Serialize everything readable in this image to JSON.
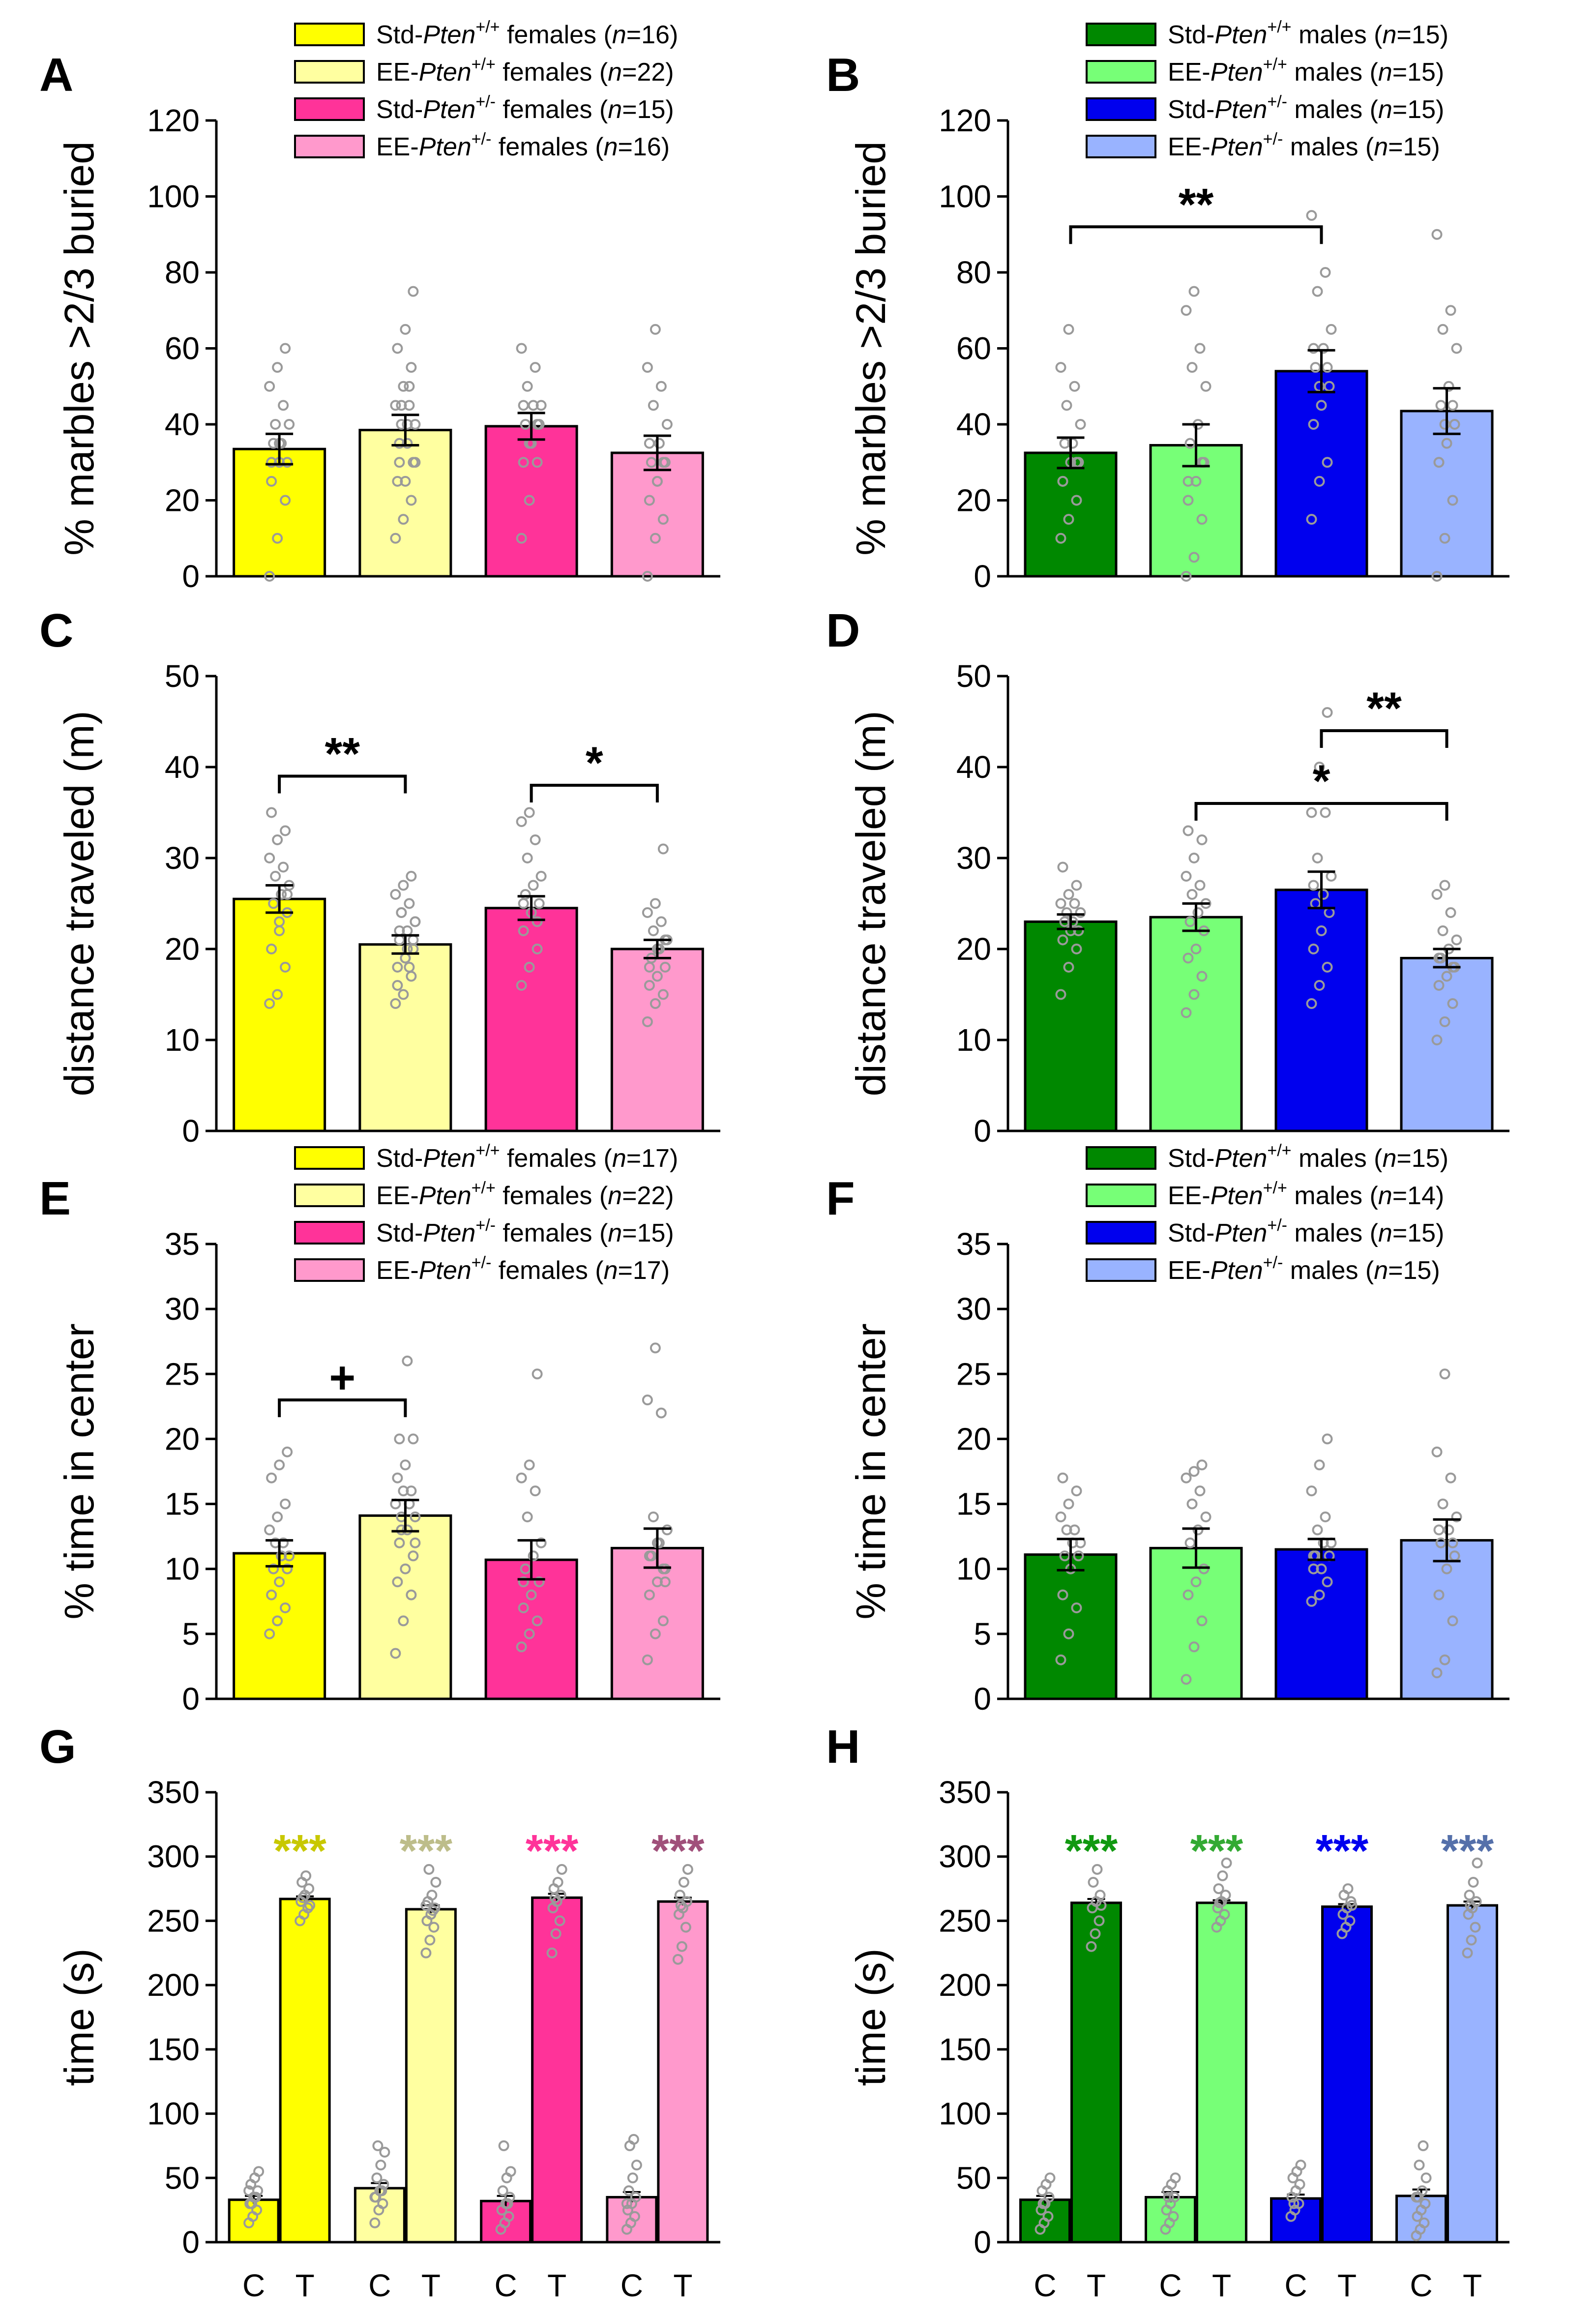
{
  "colors": {
    "female_std_wt": "#FFFF00",
    "female_ee_wt": "#FFFFA0",
    "female_std_het": "#FF3399",
    "female_ee_het": "#FF99CC",
    "male_std_wt": "#008800",
    "male_ee_wt": "#77FF77",
    "male_std_het": "#0000EE",
    "male_ee_het": "#99B3FF",
    "star_female_std_wt": "#C8C800",
    "star_female_ee_wt": "#BDBD8A",
    "star_female_std_het": "#FF3399",
    "star_female_ee_het": "#A0507A",
    "star_male_std_wt": "#119911",
    "star_male_ee_wt": "#33AA33",
    "star_male_std_het": "#0000EE",
    "star_male_ee_het": "#5570AA",
    "dot": "#9A9A9A"
  },
  "chart_data": [
    {
      "panel": "A",
      "type": "bar",
      "sex": "female",
      "ylabel": "% marbles >2/3 buried",
      "ylim": [
        0,
        120
      ],
      "yticks": [
        "0",
        "20",
        "40",
        "60",
        "80",
        "100",
        "120"
      ],
      "legend": [
        {
          "prefix": "Std-",
          "gene": "Pten",
          "sup": "+/+",
          "suffix": " females (",
          "n": "n",
          "count": "=16)"
        },
        {
          "prefix": "EE-",
          "gene": "Pten",
          "sup": "+/+",
          "suffix": " females (",
          "n": "n",
          "count": "=22)"
        },
        {
          "prefix": "Std-",
          "gene": "Pten",
          "sup": "+/-",
          "suffix": " females (",
          "n": "n",
          "count": "=15)"
        },
        {
          "prefix": "EE-",
          "gene": "Pten",
          "sup": "+/-",
          "suffix": " females (",
          "n": "n",
          "count": "=16)"
        }
      ],
      "values": [
        33.5,
        38.5,
        39.5,
        32.5
      ],
      "sem": [
        4,
        4,
        3.5,
        4.5
      ],
      "points": [
        [
          0,
          10,
          20,
          25,
          30,
          30,
          35,
          35,
          40,
          40,
          45,
          50,
          55,
          60,
          30,
          35
        ],
        [
          10,
          15,
          20,
          25,
          25,
          30,
          30,
          35,
          40,
          40,
          45,
          45,
          50,
          55,
          60,
          65,
          75,
          35,
          40,
          30,
          45,
          50
        ],
        [
          10,
          20,
          30,
          30,
          35,
          40,
          40,
          45,
          45,
          50,
          55,
          60,
          35,
          40,
          45
        ],
        [
          0,
          10,
          15,
          20,
          25,
          30,
          30,
          35,
          40,
          45,
          50,
          55,
          65,
          30,
          35,
          25
        ]
      ],
      "significance": []
    },
    {
      "panel": "B",
      "type": "bar",
      "sex": "male",
      "ylabel": "% marbles >2/3 buried",
      "ylim": [
        0,
        120
      ],
      "yticks": [
        "0",
        "20",
        "40",
        "60",
        "80",
        "100",
        "120"
      ],
      "legend": [
        {
          "prefix": "Std-",
          "gene": "Pten",
          "sup": "+/+",
          "suffix": " males (",
          "n": "n",
          "count": "=15)"
        },
        {
          "prefix": "EE-",
          "gene": "Pten",
          "sup": "+/+",
          "suffix": " males (",
          "n": "n",
          "count": "=15)"
        },
        {
          "prefix": "Std-",
          "gene": "Pten",
          "sup": "+/-",
          "suffix": " males (",
          "n": "n",
          "count": "=15)"
        },
        {
          "prefix": "EE-",
          "gene": "Pten",
          "sup": "+/-",
          "suffix": " males (",
          "n": "n",
          "count": "=15)"
        }
      ],
      "values": [
        32.5,
        34.5,
        54,
        43.5
      ],
      "sem": [
        4,
        5.5,
        5.5,
        6
      ],
      "points": [
        [
          10,
          15,
          20,
          25,
          30,
          30,
          35,
          35,
          40,
          45,
          50,
          55,
          65,
          30,
          25
        ],
        [
          0,
          5,
          15,
          20,
          25,
          30,
          35,
          40,
          50,
          55,
          60,
          70,
          75,
          30,
          25
        ],
        [
          15,
          25,
          30,
          40,
          45,
          50,
          55,
          60,
          65,
          75,
          80,
          95,
          50,
          55,
          60
        ],
        [
          0,
          10,
          20,
          30,
          35,
          40,
          45,
          50,
          60,
          65,
          70,
          90,
          40,
          45,
          30
        ]
      ],
      "significance": [
        {
          "from": 0,
          "to": 2,
          "label": "**",
          "y": 92
        }
      ]
    },
    {
      "panel": "C",
      "type": "bar",
      "sex": "female",
      "ylabel": "distance traveled (m)",
      "ylim": [
        0,
        50
      ],
      "yticks": [
        "0",
        "10",
        "20",
        "30",
        "40",
        "50"
      ],
      "legend": [],
      "values": [
        25.5,
        20.5,
        24.5,
        20
      ],
      "sem": [
        1.5,
        1,
        1.3,
        1
      ],
      "points": [
        [
          14,
          15,
          18,
          20,
          22,
          24,
          25,
          26,
          27,
          28,
          29,
          30,
          32,
          33,
          35,
          23,
          26
        ],
        [
          14,
          15,
          17,
          18,
          19,
          20,
          21,
          22,
          23,
          24,
          25,
          26,
          27,
          28,
          16,
          19,
          21,
          22,
          20,
          23,
          24,
          18
        ],
        [
          16,
          18,
          20,
          22,
          24,
          25,
          26,
          27,
          28,
          30,
          32,
          34,
          35,
          23,
          25
        ],
        [
          12,
          14,
          15,
          16,
          17,
          18,
          19,
          20,
          21,
          22,
          23,
          24,
          25,
          31,
          18,
          20,
          21
        ]
      ],
      "significance": [
        {
          "from": 0,
          "to": 1,
          "label": "**",
          "y": 39
        },
        {
          "from": 2,
          "to": 3,
          "label": "*",
          "y": 38
        }
      ]
    },
    {
      "panel": "D",
      "type": "bar",
      "sex": "male",
      "ylabel": "distance traveled (m)",
      "ylim": [
        0,
        50
      ],
      "yticks": [
        "0",
        "10",
        "20",
        "30",
        "40",
        "50"
      ],
      "legend": [],
      "values": [
        23,
        23.5,
        26.5,
        19
      ],
      "sem": [
        0.8,
        1.5,
        2,
        1
      ],
      "points": [
        [
          15,
          18,
          20,
          21,
          22,
          22,
          23,
          23,
          24,
          24,
          25,
          25,
          26,
          27,
          29
        ],
        [
          13,
          15,
          17,
          19,
          20,
          22,
          23,
          24,
          25,
          26,
          27,
          28,
          30,
          32,
          33
        ],
        [
          14,
          16,
          18,
          20,
          22,
          24,
          25,
          26,
          28,
          30,
          35,
          35,
          40,
          46,
          27
        ],
        [
          10,
          12,
          14,
          16,
          17,
          18,
          19,
          20,
          21,
          22,
          24,
          26,
          27,
          18,
          19
        ]
      ],
      "significance": [
        {
          "from": 1,
          "to": 3,
          "label": "*",
          "y": 36
        },
        {
          "from": 2,
          "to": 3,
          "label": "**",
          "y": 44
        }
      ]
    },
    {
      "panel": "E",
      "type": "bar",
      "sex": "female",
      "ylabel": "% time in center",
      "ylim": [
        0,
        35
      ],
      "yticks": [
        "0",
        "5",
        "10",
        "15",
        "20",
        "25",
        "30",
        "35"
      ],
      "legend": [
        {
          "prefix": "Std-",
          "gene": "Pten",
          "sup": "+/+",
          "suffix": " females (",
          "n": "n",
          "count": "=17)"
        },
        {
          "prefix": "EE-",
          "gene": "Pten",
          "sup": "+/+",
          "suffix": " females (",
          "n": "n",
          "count": "=22)"
        },
        {
          "prefix": "Std-",
          "gene": "Pten",
          "sup": "+/-",
          "suffix": " females (",
          "n": "n",
          "count": "=15)"
        },
        {
          "prefix": "EE-",
          "gene": "Pten",
          "sup": "+/-",
          "suffix": " females (",
          "n": "n",
          "count": "=17)"
        }
      ],
      "values": [
        11.2,
        14.1,
        10.7,
        11.6
      ],
      "sem": [
        1,
        1.2,
        1.5,
        1.5
      ],
      "points": [
        [
          5,
          6,
          7,
          8,
          9,
          10,
          10,
          11,
          11,
          12,
          12,
          13,
          14,
          15,
          17,
          18,
          19
        ],
        [
          3.5,
          6,
          8,
          9,
          10,
          11,
          12,
          13,
          14,
          14,
          15,
          15,
          16,
          16,
          17,
          18,
          20,
          20,
          26,
          12,
          13,
          15
        ],
        [
          4,
          5,
          6,
          7,
          8,
          9,
          10,
          11,
          12,
          14,
          16,
          17,
          18,
          25,
          9
        ],
        [
          3,
          5,
          6,
          8,
          9,
          10,
          11,
          12,
          13,
          14,
          22,
          23,
          27,
          10,
          11,
          12,
          9
        ]
      ],
      "significance": [
        {
          "from": 0,
          "to": 1,
          "label": "+",
          "y": 23
        }
      ]
    },
    {
      "panel": "F",
      "type": "bar",
      "sex": "male",
      "ylabel": "% time in center",
      "ylim": [
        0,
        35
      ],
      "yticks": [
        "0",
        "5",
        "10",
        "15",
        "20",
        "25",
        "30",
        "35"
      ],
      "legend": [
        {
          "prefix": "Std-",
          "gene": "Pten",
          "sup": "+/+",
          "suffix": " males (",
          "n": "n",
          "count": "=15)"
        },
        {
          "prefix": "EE-",
          "gene": "Pten",
          "sup": "+/+",
          "suffix": " males (",
          "n": "n",
          "count": "=14)"
        },
        {
          "prefix": "Std-",
          "gene": "Pten",
          "sup": "+/-",
          "suffix": " males (",
          "n": "n",
          "count": "=15)"
        },
        {
          "prefix": "EE-",
          "gene": "Pten",
          "sup": "+/-",
          "suffix": " males (",
          "n": "n",
          "count": "=15)"
        }
      ],
      "values": [
        11.1,
        11.6,
        11.5,
        12.2
      ],
      "sem": [
        1.2,
        1.5,
        0.8,
        1.6
      ],
      "points": [
        [
          3,
          5,
          7,
          8,
          10,
          11,
          11,
          12,
          12,
          13,
          13,
          14,
          15,
          16,
          17
        ],
        [
          1.5,
          4,
          6,
          8,
          9,
          10,
          12,
          13,
          14,
          15,
          16,
          17,
          17.5,
          18
        ],
        [
          7.5,
          8,
          9,
          10,
          10,
          11,
          11,
          12,
          12,
          13,
          14,
          16,
          18,
          20,
          11
        ],
        [
          2,
          3,
          6,
          8,
          10,
          11,
          12,
          13,
          14,
          15,
          17,
          19,
          25,
          12,
          13
        ]
      ],
      "significance": []
    },
    {
      "panel": "G",
      "type": "bar",
      "sex": "female",
      "ylabel": "time (s)",
      "ylim": [
        0,
        350
      ],
      "yticks": [
        "0",
        "50",
        "100",
        "150",
        "200",
        "250",
        "300",
        "350"
      ],
      "xticks": [
        "C",
        "T"
      ],
      "legend": [],
      "c_values": [
        33,
        42,
        32,
        35
      ],
      "t_values": [
        267,
        259,
        268,
        265
      ],
      "c_sem": [
        3,
        4,
        4,
        4
      ],
      "t_sem": [
        2,
        3,
        3,
        3
      ],
      "c_points": [
        [
          15,
          20,
          25,
          30,
          35,
          40,
          45,
          50,
          55,
          30,
          35,
          40
        ],
        [
          15,
          25,
          30,
          35,
          40,
          45,
          50,
          60,
          70,
          75,
          40,
          35
        ],
        [
          10,
          15,
          20,
          25,
          30,
          35,
          40,
          50,
          55,
          75,
          30
        ],
        [
          10,
          15,
          20,
          25,
          30,
          35,
          40,
          50,
          60,
          75,
          80,
          30
        ]
      ],
      "t_points": [
        [
          250,
          255,
          260,
          265,
          270,
          275,
          280,
          285,
          262,
          268
        ],
        [
          225,
          235,
          245,
          250,
          255,
          260,
          265,
          270,
          280,
          290,
          258,
          262
        ],
        [
          225,
          240,
          250,
          260,
          265,
          270,
          275,
          280,
          290,
          268
        ],
        [
          220,
          230,
          245,
          255,
          260,
          265,
          270,
          280,
          290,
          262
        ]
      ],
      "stars": [
        "***",
        "***",
        "***",
        "***"
      ],
      "significance": []
    },
    {
      "panel": "H",
      "type": "bar",
      "sex": "male",
      "ylabel": "time (s)",
      "ylim": [
        0,
        350
      ],
      "yticks": [
        "0",
        "50",
        "100",
        "150",
        "200",
        "250",
        "300",
        "350"
      ],
      "xticks": [
        "C",
        "T"
      ],
      "legend": [],
      "c_values": [
        33,
        35,
        34,
        36
      ],
      "t_values": [
        264,
        264,
        261,
        262
      ],
      "c_sem": [
        3,
        4,
        3,
        5
      ],
      "t_sem": [
        3,
        2,
        2,
        3
      ],
      "c_points": [
        [
          10,
          15,
          20,
          25,
          30,
          35,
          40,
          45,
          50,
          30
        ],
        [
          10,
          15,
          20,
          25,
          30,
          35,
          40,
          45,
          50,
          35
        ],
        [
          20,
          25,
          30,
          35,
          40,
          45,
          50,
          55,
          60,
          30
        ],
        [
          5,
          10,
          15,
          20,
          25,
          30,
          35,
          40,
          50,
          60,
          75,
          35
        ]
      ],
      "t_points": [
        [
          230,
          240,
          250,
          260,
          265,
          270,
          280,
          290,
          262
        ],
        [
          245,
          250,
          255,
          260,
          265,
          270,
          275,
          285,
          295,
          264
        ],
        [
          240,
          245,
          250,
          255,
          260,
          265,
          270,
          275,
          262
        ],
        [
          225,
          235,
          245,
          255,
          260,
          265,
          270,
          280,
          295,
          262
        ]
      ],
      "stars": [
        "***",
        "***",
        "***",
        "***"
      ],
      "significance": []
    }
  ]
}
